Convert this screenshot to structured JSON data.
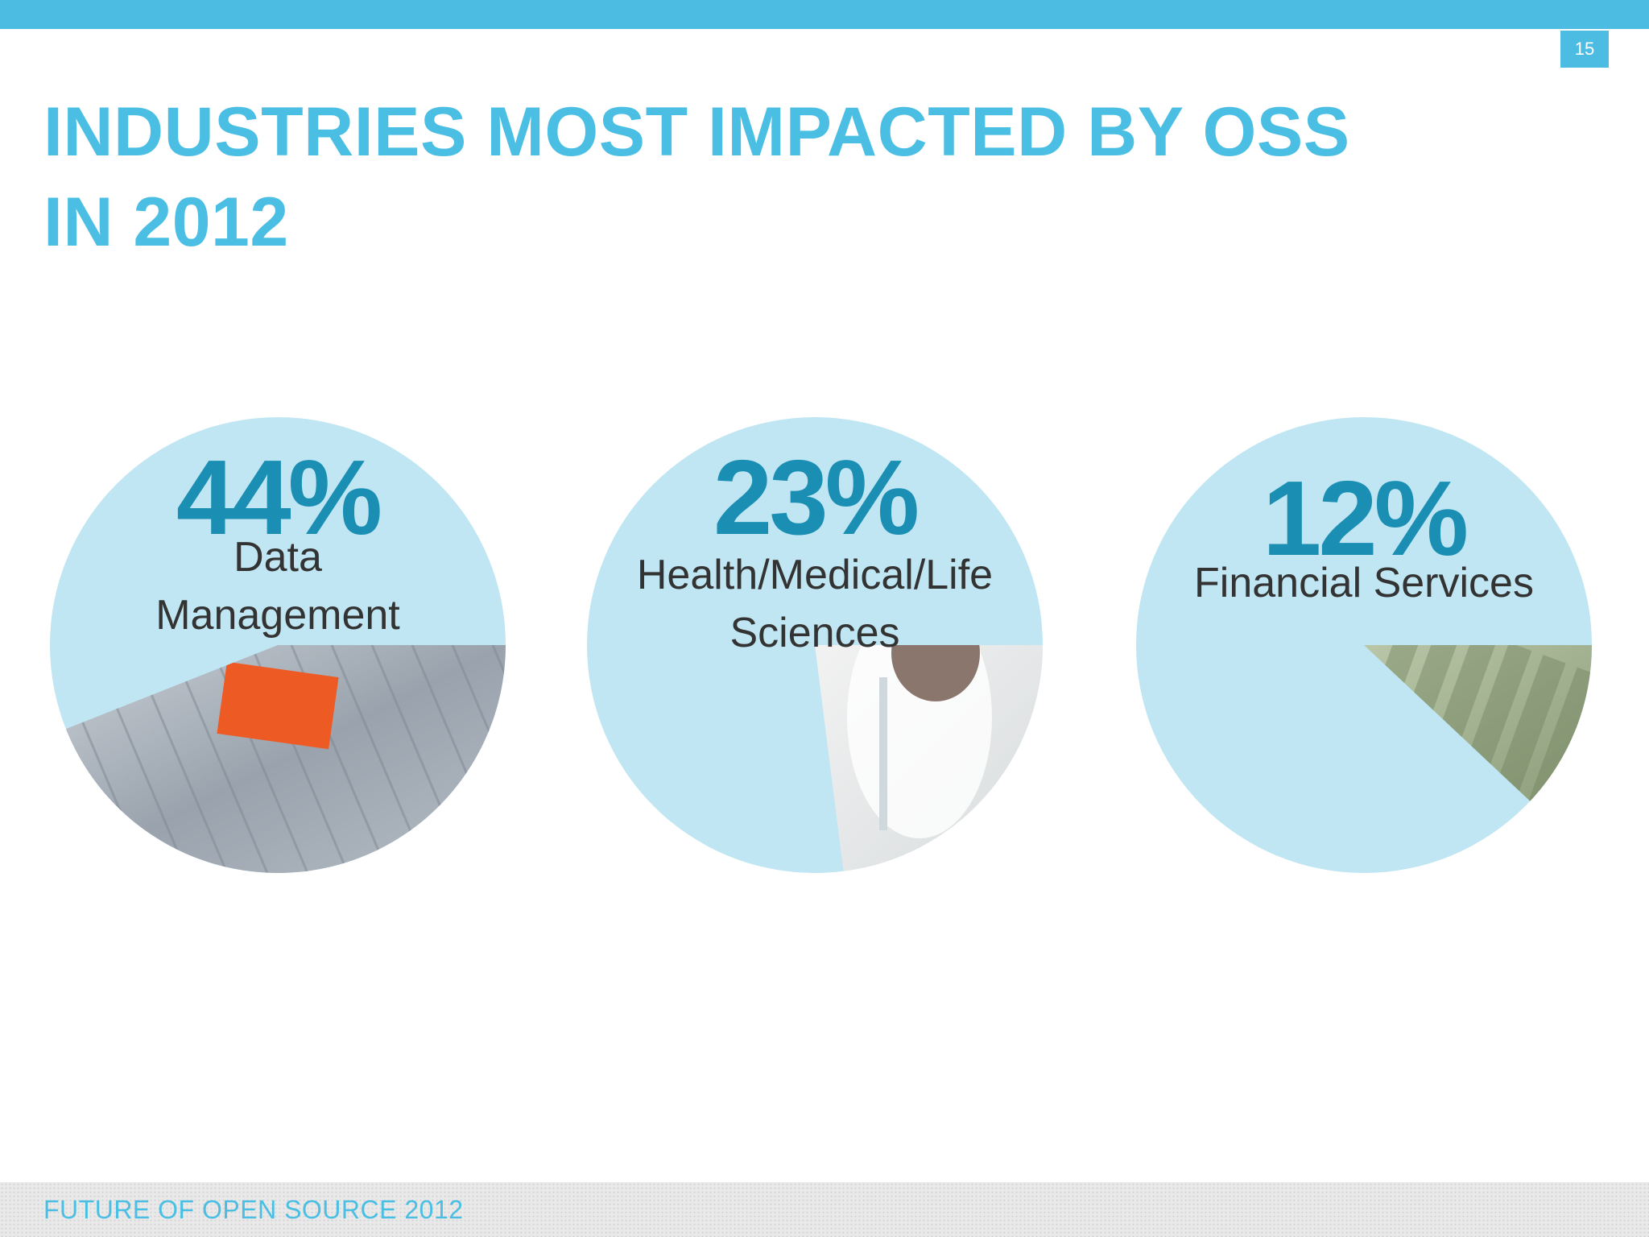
{
  "slide": {
    "number": "15",
    "title_line1": "INDUSTRIES MOST IMPACTED BY OSS",
    "title_line2": "IN 2012",
    "footer": "FUTURE OF OPEN SOURCE 2012"
  },
  "colors": {
    "accent": "#4dbce3",
    "pie_fill": "#bfe6f2",
    "percent_text": "#1a8fb3",
    "label_text": "#333333"
  },
  "chart_data": {
    "type": "pie",
    "title": "INDUSTRIES MOST IMPACTED BY OSS IN 2012",
    "slices": [
      {
        "label": "Data Management",
        "label_lines": [
          "Data",
          "Management"
        ],
        "value": 44,
        "value_label": "44%",
        "icon": "filing-cabinet-photo"
      },
      {
        "label": "Health/Medical/Life Sciences",
        "label_lines": [
          "Health/Medical/Life",
          "Sciences"
        ],
        "value": 23,
        "value_label": "23%",
        "icon": "lab-scientist-photo"
      },
      {
        "label": "Financial Services",
        "label_lines": [
          "Financial Services"
        ],
        "value": 12,
        "value_label": "12%",
        "icon": "hundred-dollar-bills-photo"
      }
    ]
  }
}
